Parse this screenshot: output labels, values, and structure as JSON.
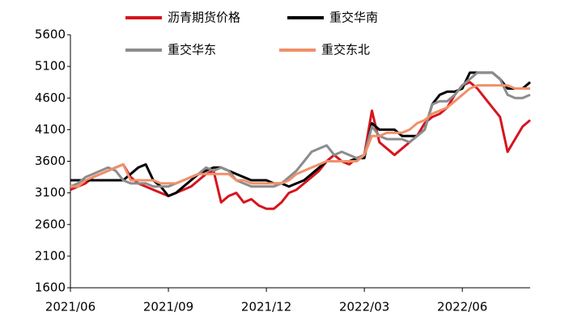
{
  "chart_data": {
    "type": "line",
    "categories": [
      "2021/06",
      null,
      null,
      null,
      null,
      null,
      null,
      null,
      null,
      null,
      null,
      null,
      null,
      "2021/09",
      null,
      null,
      null,
      null,
      null,
      null,
      null,
      null,
      null,
      null,
      null,
      null,
      "2021/12",
      null,
      null,
      null,
      null,
      null,
      null,
      null,
      null,
      null,
      null,
      null,
      null,
      "2022/03",
      null,
      null,
      null,
      null,
      null,
      null,
      null,
      null,
      null,
      null,
      null,
      null,
      "2022/06",
      null,
      null,
      null,
      null,
      null,
      null,
      null,
      null,
      null
    ],
    "series": [
      {
        "name": "沥青期货价格",
        "color": "#d7141e",
        "values": [
          3150,
          3200,
          3250,
          3350,
          3400,
          3450,
          3500,
          3550,
          3350,
          3250,
          3200,
          3150,
          3100,
          3050,
          3100,
          3150,
          3200,
          3300,
          3400,
          3450,
          2950,
          3050,
          3100,
          2950,
          3000,
          2900,
          2850,
          2850,
          2950,
          3100,
          3150,
          3250,
          3350,
          3450,
          3600,
          3700,
          3600,
          3550,
          3650,
          3700,
          4400,
          3900,
          3800,
          3700,
          3800,
          3900,
          4000,
          4200,
          4300,
          4350,
          4450,
          4650,
          4800,
          4850,
          4750,
          4600,
          4450,
          4300,
          3750,
          3950,
          4150,
          4250
        ]
      },
      {
        "name": "重交华南",
        "color": "#000000",
        "values": [
          3300,
          3300,
          3300,
          3300,
          3300,
          3300,
          3300,
          3300,
          3400,
          3500,
          3550,
          3300,
          3200,
          3050,
          3100,
          3200,
          3300,
          3400,
          3450,
          3500,
          3500,
          3450,
          3400,
          3350,
          3300,
          3300,
          3300,
          3250,
          3250,
          3200,
          3250,
          3300,
          3400,
          3500,
          3600,
          3600,
          3600,
          3600,
          3650,
          3650,
          4200,
          4100,
          4100,
          4100,
          4000,
          4000,
          4000,
          4100,
          4500,
          4650,
          4700,
          4700,
          4750,
          5000,
          5000,
          5000,
          5000,
          4900,
          4750,
          4750,
          4750,
          4850
        ]
      },
      {
        "name": "重交华东",
        "color": "#8c8c8c",
        "values": [
          3200,
          3250,
          3350,
          3400,
          3450,
          3500,
          3450,
          3300,
          3250,
          3250,
          3250,
          3200,
          3200,
          3200,
          3250,
          3300,
          3350,
          3400,
          3500,
          3450,
          3500,
          3450,
          3300,
          3250,
          3200,
          3200,
          3200,
          3200,
          3250,
          3350,
          3450,
          3600,
          3750,
          3800,
          3850,
          3700,
          3750,
          3700,
          3650,
          3700,
          4150,
          4000,
          3950,
          3950,
          3950,
          3900,
          4000,
          4100,
          4500,
          4550,
          4550,
          4650,
          4800,
          4900,
          5000,
          5000,
          5000,
          4900,
          4650,
          4600,
          4600,
          4650
        ]
      },
      {
        "name": "重交东北",
        "color": "#f0906a",
        "values": [
          3200,
          3200,
          3300,
          3350,
          3400,
          3450,
          3500,
          3550,
          3300,
          3300,
          3300,
          3300,
          3250,
          3250,
          3250,
          3300,
          3350,
          3400,
          3400,
          3400,
          3400,
          3400,
          3300,
          3300,
          3250,
          3250,
          3250,
          3250,
          3250,
          3300,
          3400,
          3450,
          3500,
          3550,
          3600,
          3600,
          3600,
          3600,
          3600,
          3700,
          4000,
          4000,
          4050,
          4050,
          4050,
          4100,
          4200,
          4250,
          4350,
          4400,
          4450,
          4550,
          4650,
          4750,
          4800,
          4800,
          4800,
          4800,
          4800,
          4750,
          4750,
          4750
        ]
      }
    ],
    "ylim": [
      1600,
      5600
    ],
    "yticks": [
      1600,
      2100,
      2600,
      3100,
      3600,
      4100,
      4600,
      5100,
      5600
    ],
    "grid": false
  }
}
